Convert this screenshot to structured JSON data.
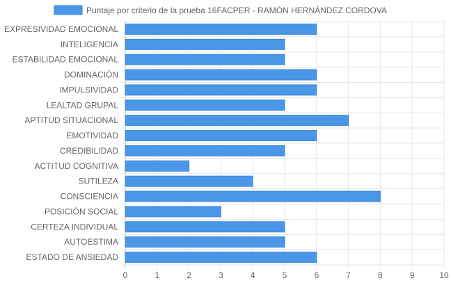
{
  "chart_data": {
    "type": "bar",
    "orientation": "horizontal",
    "categories": [
      "EXPRESIVIDAD EMOCIONAL",
      "INTELIGENCIA",
      "ESTABILIDAD EMOCIONAL",
      "DOMINACIÓN",
      "IMPULSIVIDAD",
      "LEALTAD GRUPAL",
      "APTITUD SITUACIONAL",
      "EMOTIVIDAD",
      "CREDIBILIDAD",
      "ACTITUD COGNITIVA",
      "SUTILEZA",
      "CONSCIENCIA",
      "POSICIÓN SOCIAL",
      "CERTEZA INDIVIDUAL",
      "AUTOESTIMA",
      "ESTADO DE ANSIEDAD"
    ],
    "series": [
      {
        "name": "Puntaje por criterio de la prueba 16FACPER - RAMÓN HERNÁNDEZ CORDOVA",
        "values": [
          6,
          5,
          5,
          6,
          6,
          5,
          7,
          6,
          5,
          2,
          4,
          8,
          3,
          5,
          5,
          6
        ]
      }
    ],
    "xlim": [
      0,
      10
    ],
    "xticks": [
      "0",
      "1",
      "2",
      "3",
      "4",
      "5",
      "6",
      "7",
      "8",
      "9",
      "10"
    ],
    "grid": true,
    "legend_position": "top",
    "colors": {
      "bar_fill": "#4a97e8",
      "bar_border": "#3c87de",
      "grid": "#e5e5e5",
      "text": "#666666"
    }
  }
}
